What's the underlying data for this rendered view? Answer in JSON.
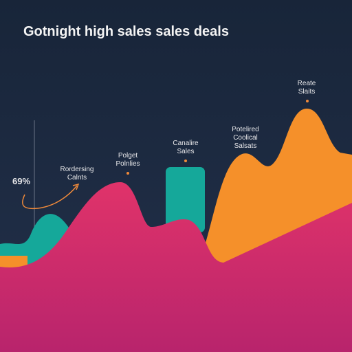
{
  "title": "Gotnight high sales sales deals",
  "annotations": [
    {
      "text": "69%"
    },
    {
      "lines": [
        "Rordersing",
        "Calnts"
      ]
    },
    {
      "lines": [
        "Polget",
        "Polnlies"
      ]
    },
    {
      "lines": [
        "Canalire",
        "Sales"
      ]
    },
    {
      "lines": [
        "Potelired",
        "Coolical",
        "Salsats"
      ]
    },
    {
      "lines": [
        "Reate",
        "Slaits"
      ]
    }
  ]
}
